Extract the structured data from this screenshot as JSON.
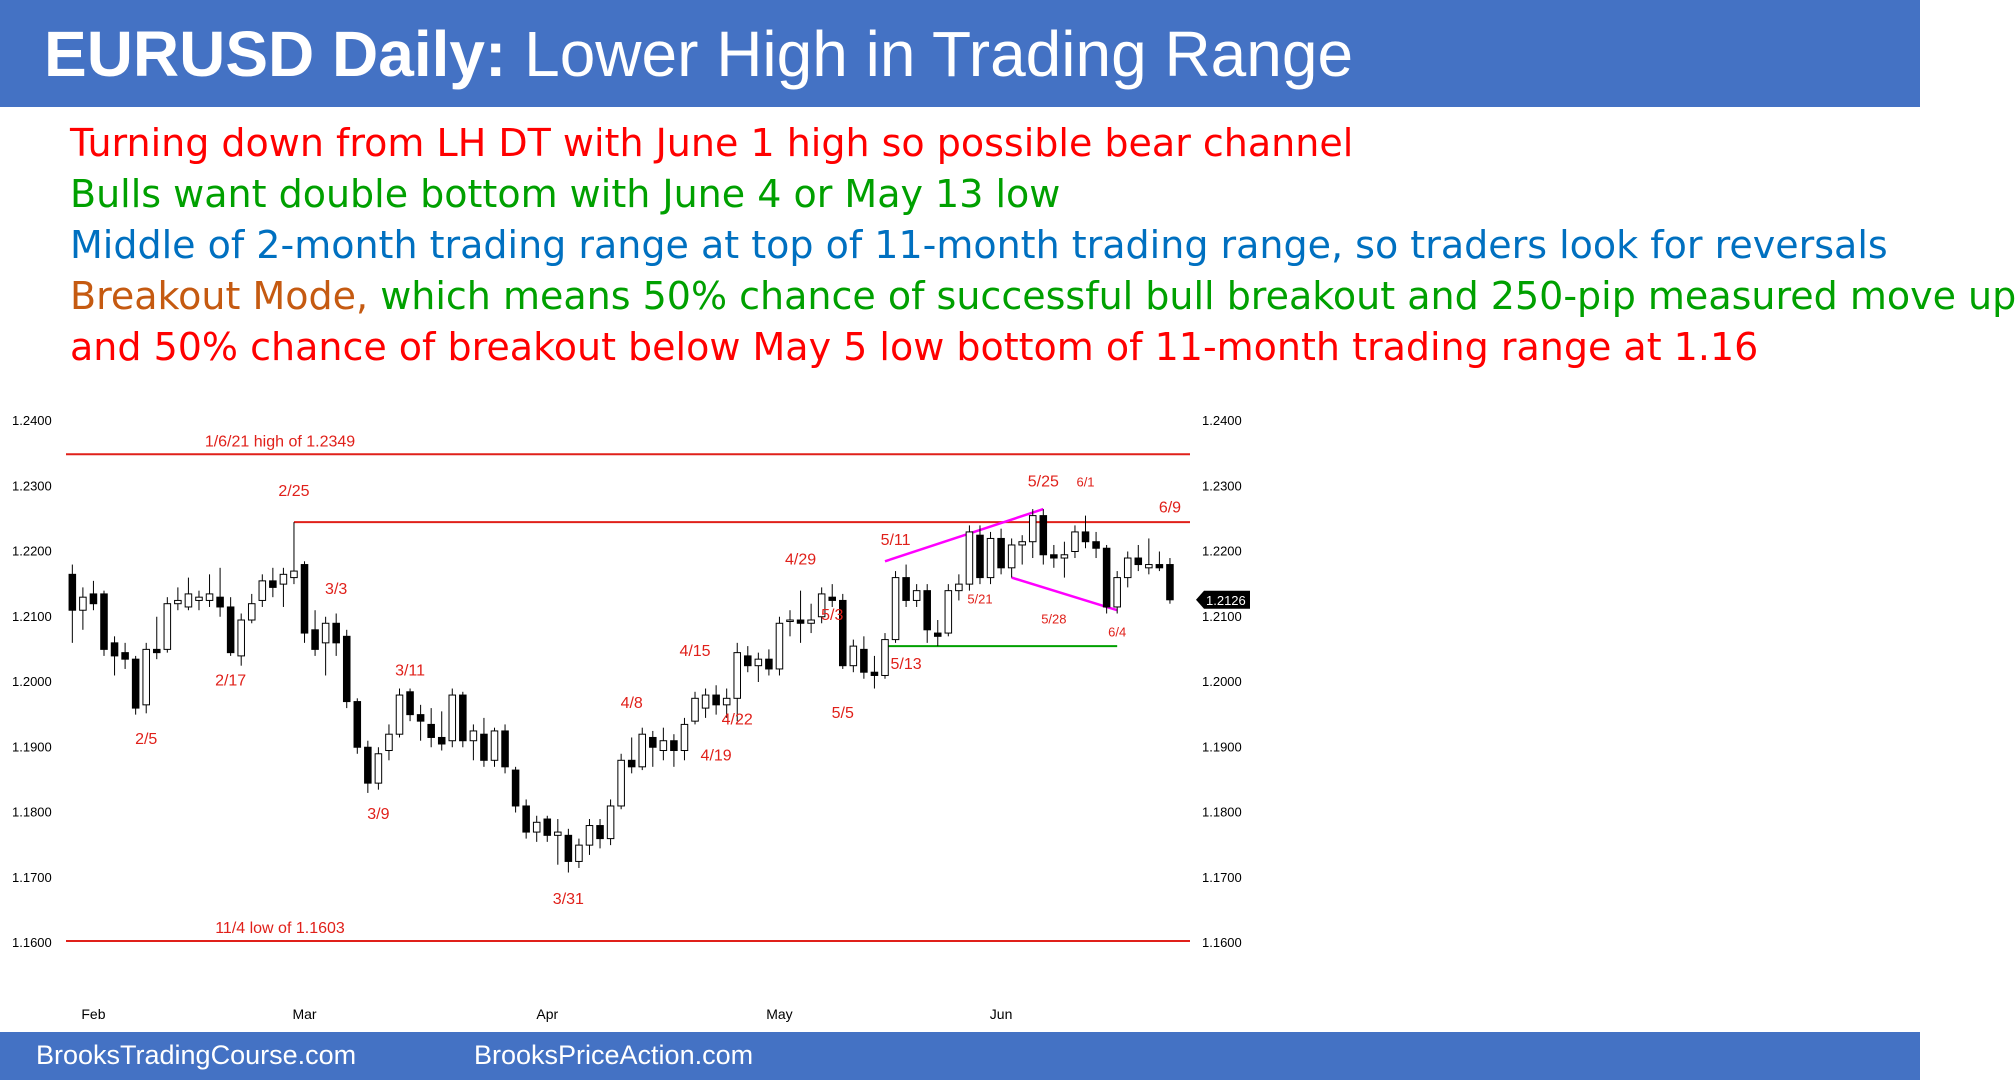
{
  "header": {
    "title_bold": "EURUSD Daily:",
    "title_rest": " Lower High in Trading Range",
    "bg_color": "#4472c4"
  },
  "bullets": [
    {
      "parts": [
        {
          "text": "Turning down from LH DT with June 1 high so possible bear channel",
          "color": "#ff0000"
        }
      ]
    },
    {
      "parts": [
        {
          "text": "Bulls want double bottom with June 4 or May 13 low",
          "color": "#00a000"
        }
      ]
    },
    {
      "parts": [
        {
          "text": "Middle of 2-month trading range at top of 11-month trading range, so traders look for reversals",
          "color": "#0070c0"
        }
      ]
    },
    {
      "parts": [
        {
          "text": "Breakout Mode,",
          "color": "#c55a11"
        },
        {
          "text": " which means 50% chance of successful bull breakout and 250-pip measured move up",
          "color": "#00a000"
        }
      ]
    },
    {
      "parts": [
        {
          "text": "and 50% chance of breakout below May 5 low bottom of 11-month trading range at 1.16",
          "color": "#ff0000"
        }
      ]
    }
  ],
  "footer": {
    "left": "BrooksTradingCourse.com",
    "right": "BrooksPriceAction.com"
  },
  "chart_data": {
    "type": "candlestick",
    "symbol": "EURUSD",
    "timeframe": "Daily",
    "ylim": [
      1.16,
      1.24
    ],
    "y_ticks": [
      "1.2400",
      "1.2300",
      "1.2200",
      "1.2100",
      "1.2000",
      "1.1900",
      "1.1800",
      "1.1700",
      "1.1600"
    ],
    "x_ticks": [
      {
        "label": "Feb",
        "index": 2
      },
      {
        "label": "Mar",
        "index": 22
      },
      {
        "label": "Apr",
        "index": 45
      },
      {
        "label": "May",
        "index": 67
      },
      {
        "label": "Jun",
        "index": 88
      }
    ],
    "last_price": "1.2126",
    "candles": [
      {
        "o": 1.2165,
        "h": 1.218,
        "l": 1.206,
        "c": 1.211
      },
      {
        "o": 1.211,
        "h": 1.2145,
        "l": 1.208,
        "c": 1.213
      },
      {
        "o": 1.2135,
        "h": 1.2155,
        "l": 1.211,
        "c": 1.212
      },
      {
        "o": 1.2135,
        "h": 1.214,
        "l": 1.204,
        "c": 1.205
      },
      {
        "o": 1.206,
        "h": 1.207,
        "l": 1.201,
        "c": 1.204
      },
      {
        "o": 1.2045,
        "h": 1.206,
        "l": 1.202,
        "c": 1.2035
      },
      {
        "o": 1.2035,
        "h": 1.204,
        "l": 1.195,
        "c": 1.196
      },
      {
        "o": 1.1965,
        "h": 1.206,
        "l": 1.1952,
        "c": 1.205
      },
      {
        "o": 1.205,
        "h": 1.21,
        "l": 1.2035,
        "c": 1.2045
      },
      {
        "o": 1.205,
        "h": 1.213,
        "l": 1.2045,
        "c": 1.212
      },
      {
        "o": 1.212,
        "h": 1.2145,
        "l": 1.211,
        "c": 1.2125
      },
      {
        "o": 1.2115,
        "h": 1.216,
        "l": 1.211,
        "c": 1.2135
      },
      {
        "o": 1.2125,
        "h": 1.214,
        "l": 1.211,
        "c": 1.213
      },
      {
        "o": 1.2125,
        "h": 1.2165,
        "l": 1.2115,
        "c": 1.2135
      },
      {
        "o": 1.213,
        "h": 1.2175,
        "l": 1.21,
        "c": 1.2115
      },
      {
        "o": 1.2115,
        "h": 1.213,
        "l": 1.204,
        "c": 1.2045
      },
      {
        "o": 1.204,
        "h": 1.2105,
        "l": 1.2025,
        "c": 1.2095
      },
      {
        "o": 1.2095,
        "h": 1.2135,
        "l": 1.209,
        "c": 1.212
      },
      {
        "o": 1.2125,
        "h": 1.2165,
        "l": 1.2115,
        "c": 1.2155
      },
      {
        "o": 1.2155,
        "h": 1.2175,
        "l": 1.213,
        "c": 1.2145
      },
      {
        "o": 1.215,
        "h": 1.2175,
        "l": 1.2115,
        "c": 1.2165
      },
      {
        "o": 1.216,
        "h": 1.2245,
        "l": 1.215,
        "c": 1.217
      },
      {
        "o": 1.218,
        "h": 1.2185,
        "l": 1.206,
        "c": 1.2075
      },
      {
        "o": 1.208,
        "h": 1.211,
        "l": 1.204,
        "c": 1.205
      },
      {
        "o": 1.206,
        "h": 1.21,
        "l": 1.201,
        "c": 1.209
      },
      {
        "o": 1.209,
        "h": 1.2105,
        "l": 1.204,
        "c": 1.206
      },
      {
        "o": 1.207,
        "h": 1.208,
        "l": 1.196,
        "c": 1.197
      },
      {
        "o": 1.197,
        "h": 1.1975,
        "l": 1.189,
        "c": 1.19
      },
      {
        "o": 1.19,
        "h": 1.191,
        "l": 1.183,
        "c": 1.1845
      },
      {
        "o": 1.1845,
        "h": 1.19,
        "l": 1.1835,
        "c": 1.189
      },
      {
        "o": 1.1895,
        "h": 1.1935,
        "l": 1.188,
        "c": 1.192
      },
      {
        "o": 1.192,
        "h": 1.199,
        "l": 1.1915,
        "c": 1.198
      },
      {
        "o": 1.1985,
        "h": 1.199,
        "l": 1.194,
        "c": 1.195
      },
      {
        "o": 1.195,
        "h": 1.1965,
        "l": 1.191,
        "c": 1.194
      },
      {
        "o": 1.1935,
        "h": 1.196,
        "l": 1.19,
        "c": 1.1915
      },
      {
        "o": 1.1915,
        "h": 1.1955,
        "l": 1.1895,
        "c": 1.1905
      },
      {
        "o": 1.191,
        "h": 1.199,
        "l": 1.19,
        "c": 1.198
      },
      {
        "o": 1.198,
        "h": 1.1985,
        "l": 1.19,
        "c": 1.191
      },
      {
        "o": 1.191,
        "h": 1.1935,
        "l": 1.188,
        "c": 1.1925
      },
      {
        "o": 1.192,
        "h": 1.1945,
        "l": 1.187,
        "c": 1.188
      },
      {
        "o": 1.188,
        "h": 1.193,
        "l": 1.187,
        "c": 1.1925
      },
      {
        "o": 1.1925,
        "h": 1.1935,
        "l": 1.186,
        "c": 1.187
      },
      {
        "o": 1.1865,
        "h": 1.187,
        "l": 1.18,
        "c": 1.181
      },
      {
        "o": 1.181,
        "h": 1.182,
        "l": 1.176,
        "c": 1.177
      },
      {
        "o": 1.177,
        "h": 1.1795,
        "l": 1.1755,
        "c": 1.1785
      },
      {
        "o": 1.179,
        "h": 1.1795,
        "l": 1.1755,
        "c": 1.1765
      },
      {
        "o": 1.1765,
        "h": 1.179,
        "l": 1.172,
        "c": 1.177
      },
      {
        "o": 1.1765,
        "h": 1.1775,
        "l": 1.1708,
        "c": 1.1725
      },
      {
        "o": 1.1725,
        "h": 1.176,
        "l": 1.1715,
        "c": 1.175
      },
      {
        "o": 1.175,
        "h": 1.179,
        "l": 1.1735,
        "c": 1.178
      },
      {
        "o": 1.178,
        "h": 1.179,
        "l": 1.1745,
        "c": 1.176
      },
      {
        "o": 1.176,
        "h": 1.182,
        "l": 1.175,
        "c": 1.181
      },
      {
        "o": 1.181,
        "h": 1.189,
        "l": 1.1805,
        "c": 1.188
      },
      {
        "o": 1.188,
        "h": 1.1915,
        "l": 1.186,
        "c": 1.187
      },
      {
        "o": 1.187,
        "h": 1.193,
        "l": 1.1865,
        "c": 1.192
      },
      {
        "o": 1.1915,
        "h": 1.1925,
        "l": 1.187,
        "c": 1.19
      },
      {
        "o": 1.1895,
        "h": 1.193,
        "l": 1.188,
        "c": 1.191
      },
      {
        "o": 1.191,
        "h": 1.192,
        "l": 1.187,
        "c": 1.1895
      },
      {
        "o": 1.1895,
        "h": 1.1945,
        "l": 1.188,
        "c": 1.1935
      },
      {
        "o": 1.194,
        "h": 1.1985,
        "l": 1.1935,
        "c": 1.1975
      },
      {
        "o": 1.196,
        "h": 1.199,
        "l": 1.1945,
        "c": 1.198
      },
      {
        "o": 1.198,
        "h": 1.1995,
        "l": 1.195,
        "c": 1.1965
      },
      {
        "o": 1.1965,
        "h": 1.199,
        "l": 1.1945,
        "c": 1.1975
      },
      {
        "o": 1.1975,
        "h": 1.206,
        "l": 1.194,
        "c": 1.2045
      },
      {
        "o": 1.204,
        "h": 1.2055,
        "l": 1.2015,
        "c": 1.2025
      },
      {
        "o": 1.2025,
        "h": 1.2045,
        "l": 1.2,
        "c": 1.2035
      },
      {
        "o": 1.2035,
        "h": 1.205,
        "l": 1.201,
        "c": 1.202
      },
      {
        "o": 1.202,
        "h": 1.21,
        "l": 1.201,
        "c": 1.209
      },
      {
        "o": 1.2095,
        "h": 1.211,
        "l": 1.207,
        "c": 1.2095
      },
      {
        "o": 1.2095,
        "h": 1.214,
        "l": 1.206,
        "c": 1.209
      },
      {
        "o": 1.209,
        "h": 1.212,
        "l": 1.2075,
        "c": 1.2095
      },
      {
        "o": 1.21,
        "h": 1.2145,
        "l": 1.209,
        "c": 1.2135
      },
      {
        "o": 1.213,
        "h": 1.215,
        "l": 1.2115,
        "c": 1.2125
      },
      {
        "o": 1.2125,
        "h": 1.2135,
        "l": 1.202,
        "c": 1.2025
      },
      {
        "o": 1.2025,
        "h": 1.2065,
        "l": 1.2015,
        "c": 1.2055
      },
      {
        "o": 1.205,
        "h": 1.207,
        "l": 1.2005,
        "c": 1.2015
      },
      {
        "o": 1.2015,
        "h": 1.204,
        "l": 1.199,
        "c": 1.201
      },
      {
        "o": 1.201,
        "h": 1.2075,
        "l": 1.2005,
        "c": 1.2065
      },
      {
        "o": 1.2065,
        "h": 1.217,
        "l": 1.206,
        "c": 1.216
      },
      {
        "o": 1.216,
        "h": 1.218,
        "l": 1.2115,
        "c": 1.2125
      },
      {
        "o": 1.2125,
        "h": 1.215,
        "l": 1.2115,
        "c": 1.214
      },
      {
        "o": 1.214,
        "h": 1.215,
        "l": 1.206,
        "c": 1.208
      },
      {
        "o": 1.2075,
        "h": 1.2095,
        "l": 1.2055,
        "c": 1.207
      },
      {
        "o": 1.2075,
        "h": 1.215,
        "l": 1.207,
        "c": 1.214
      },
      {
        "o": 1.214,
        "h": 1.2165,
        "l": 1.2125,
        "c": 1.215
      },
      {
        "o": 1.215,
        "h": 1.224,
        "l": 1.214,
        "c": 1.223
      },
      {
        "o": 1.2225,
        "h": 1.224,
        "l": 1.215,
        "c": 1.216
      },
      {
        "o": 1.216,
        "h": 1.223,
        "l": 1.215,
        "c": 1.222
      },
      {
        "o": 1.222,
        "h": 1.2235,
        "l": 1.2165,
        "c": 1.2175
      },
      {
        "o": 1.2175,
        "h": 1.222,
        "l": 1.216,
        "c": 1.221
      },
      {
        "o": 1.221,
        "h": 1.2225,
        "l": 1.218,
        "c": 1.2215
      },
      {
        "o": 1.2215,
        "h": 1.2265,
        "l": 1.219,
        "c": 1.2255
      },
      {
        "o": 1.2255,
        "h": 1.2265,
        "l": 1.218,
        "c": 1.2195
      },
      {
        "o": 1.2195,
        "h": 1.221,
        "l": 1.2175,
        "c": 1.219
      },
      {
        "o": 1.219,
        "h": 1.2215,
        "l": 1.216,
        "c": 1.2195
      },
      {
        "o": 1.22,
        "h": 1.224,
        "l": 1.219,
        "c": 1.223
      },
      {
        "o": 1.223,
        "h": 1.2255,
        "l": 1.2205,
        "c": 1.2215
      },
      {
        "o": 1.2215,
        "h": 1.223,
        "l": 1.219,
        "c": 1.2205
      },
      {
        "o": 1.2205,
        "h": 1.221,
        "l": 1.2105,
        "c": 1.2115
      },
      {
        "o": 1.2115,
        "h": 1.217,
        "l": 1.2105,
        "c": 1.216
      },
      {
        "o": 1.216,
        "h": 1.22,
        "l": 1.2145,
        "c": 1.219
      },
      {
        "o": 1.219,
        "h": 1.221,
        "l": 1.217,
        "c": 1.218
      },
      {
        "o": 1.2175,
        "h": 1.222,
        "l": 1.2165,
        "c": 1.218
      },
      {
        "o": 1.218,
        "h": 1.22,
        "l": 1.217,
        "c": 1.2175
      },
      {
        "o": 1.218,
        "h": 1.219,
        "l": 1.212,
        "c": 1.2126
      }
    ],
    "horizontal_lines": [
      {
        "label": "1/6/21 high of 1.2349",
        "value": 1.2349,
        "color": "#e0201a",
        "from": 0,
        "to": 110
      },
      {
        "label": "",
        "value": 1.2245,
        "color": "#e0201a",
        "from": 21,
        "to": 110
      },
      {
        "label": "",
        "value": 1.2055,
        "color": "#00a000",
        "from": 77,
        "to": 99
      },
      {
        "label": "11/4 low of 1.1603",
        "value": 1.1603,
        "color": "#e0201a",
        "from": 0,
        "to": 110
      }
    ],
    "trend_lines": [
      {
        "color": "#ff00ff",
        "from": {
          "index": 77,
          "value": 1.2185
        },
        "to": {
          "index": 92,
          "value": 1.2265
        }
      },
      {
        "color": "#ff00ff",
        "from": {
          "index": 89,
          "value": 1.216
        },
        "to": {
          "index": 99,
          "value": 1.211
        }
      }
    ],
    "annotations": [
      {
        "text": "2/25",
        "index": 21,
        "value": 1.2285,
        "small": false
      },
      {
        "text": "3/3",
        "index": 25,
        "value": 1.2135,
        "small": false
      },
      {
        "text": "2/17",
        "index": 15,
        "value": 1.1995,
        "small": false
      },
      {
        "text": "2/5",
        "index": 7,
        "value": 1.1905,
        "small": false
      },
      {
        "text": "3/11",
        "index": 32,
        "value": 1.201,
        "small": false
      },
      {
        "text": "3/9",
        "index": 29,
        "value": 1.179,
        "small": false
      },
      {
        "text": "3/31",
        "index": 47,
        "value": 1.166,
        "small": false
      },
      {
        "text": "4/8",
        "index": 53,
        "value": 1.196,
        "small": false
      },
      {
        "text": "4/15",
        "index": 59,
        "value": 1.204,
        "small": false
      },
      {
        "text": "4/22",
        "index": 63,
        "value": 1.1935,
        "small": false
      },
      {
        "text": "4/19",
        "index": 61,
        "value": 1.188,
        "small": false
      },
      {
        "text": "4/29",
        "index": 69,
        "value": 1.218,
        "small": false
      },
      {
        "text": "5/3",
        "index": 72,
        "value": 1.2095,
        "small": false
      },
      {
        "text": "5/5",
        "index": 73,
        "value": 1.1945,
        "small": false
      },
      {
        "text": "5/11",
        "index": 78,
        "value": 1.221,
        "small": false
      },
      {
        "text": "5/13",
        "index": 79,
        "value": 1.202,
        "small": false
      },
      {
        "text": "5/21",
        "index": 86,
        "value": 1.212,
        "small": true
      },
      {
        "text": "5/25",
        "index": 92,
        "value": 1.23,
        "small": false
      },
      {
        "text": "5/28",
        "index": 93,
        "value": 1.209,
        "small": true
      },
      {
        "text": "6/1",
        "index": 96,
        "value": 1.23,
        "small": true
      },
      {
        "text": "6/4",
        "index": 99,
        "value": 1.207,
        "small": true
      },
      {
        "text": "6/9",
        "index": 104,
        "value": 1.226,
        "small": false
      }
    ],
    "colors": {
      "bull": "#ffffff",
      "bear": "#000000",
      "outline": "#000000",
      "last_price_bg": "#000000",
      "annotation": "#e0201a"
    }
  }
}
